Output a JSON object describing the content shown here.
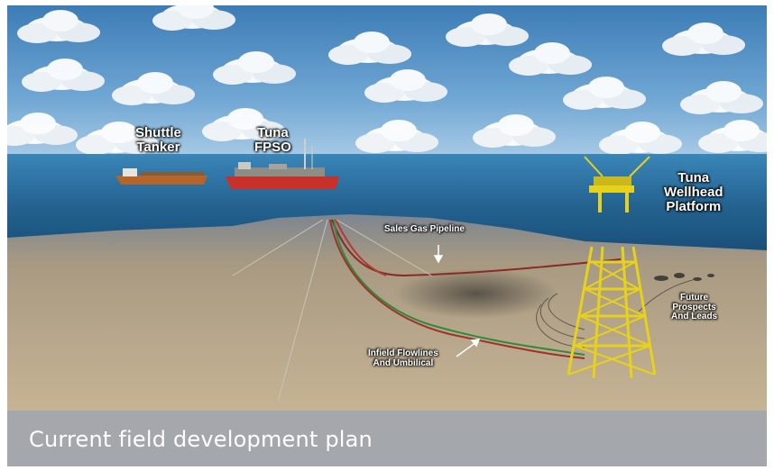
{
  "caption": "Current field development plan",
  "labels": {
    "shuttle_tanker": [
      "Shuttle",
      "Tanker"
    ],
    "tuna_fpso": [
      "Tuna",
      "FPSO"
    ],
    "tuna_wellhead_platform": [
      "Tuna",
      "Wellhead",
      "Platform"
    ],
    "sales_gas_pipeline": "Sales Gas Pipeline",
    "infield_flowlines": [
      "Infield Flowlines",
      "And Umbilical"
    ],
    "future_prospects": [
      "Future",
      "Prospects",
      "And Leads"
    ]
  },
  "colors": {
    "sky_top": "#3f7fb8",
    "sea": "#2f74a6",
    "seabed": "#b3a185",
    "caption_bar": "#a4a7ab",
    "jacket": "#e6d21a",
    "fpso_hull": "#c8302a",
    "tanker_hull": "#b5652a",
    "flowline_green": "#2f8a3a",
    "flowline_red": "#a0302a"
  }
}
